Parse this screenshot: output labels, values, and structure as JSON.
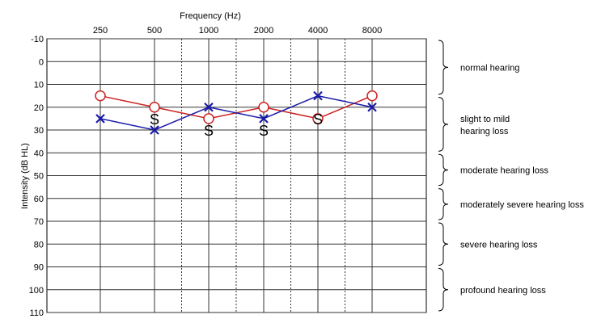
{
  "chart_data": {
    "type": "line",
    "title": "Frequency (Hz)",
    "xlabel": "Frequency (Hz)",
    "ylabel": "Intensity (dB HL)",
    "x_categories": [
      "250",
      "500",
      "1000",
      "2000",
      "4000",
      "8000"
    ],
    "x_intermediate": [
      "750",
      "1500",
      "3000",
      "6000"
    ],
    "ylim": [
      -10,
      110
    ],
    "y_inverted": true,
    "y_ticks": [
      -10,
      0,
      10,
      20,
      30,
      40,
      50,
      60,
      70,
      80,
      90,
      100,
      110
    ],
    "grid": true,
    "series": [
      {
        "marker": "O",
        "color": "#cc2222",
        "values": [
          15,
          20,
          25,
          20,
          25,
          15
        ]
      },
      {
        "marker": "X",
        "color": "#1a1aaa",
        "values": [
          25,
          30,
          20,
          25,
          15,
          20
        ]
      },
      {
        "marker": "S",
        "color": "#000000",
        "points": [
          [
            "500",
            25
          ],
          [
            "1000",
            30
          ],
          [
            "2000",
            30
          ],
          [
            "4000",
            25
          ]
        ]
      }
    ],
    "ranges": [
      {
        "label": "normal hearing",
        "from": -10,
        "to": 15
      },
      {
        "label": "slight to mild\nhearing loss",
        "from": 15,
        "to": 40
      },
      {
        "label": "moderate hearing loss",
        "from": 40,
        "to": 55
      },
      {
        "label": "moderately severe hearing loss",
        "from": 55,
        "to": 70
      },
      {
        "label": "severe hearing loss",
        "from": 70,
        "to": 90
      },
      {
        "label": "profound hearing loss",
        "from": 90,
        "to": 110
      }
    ]
  }
}
